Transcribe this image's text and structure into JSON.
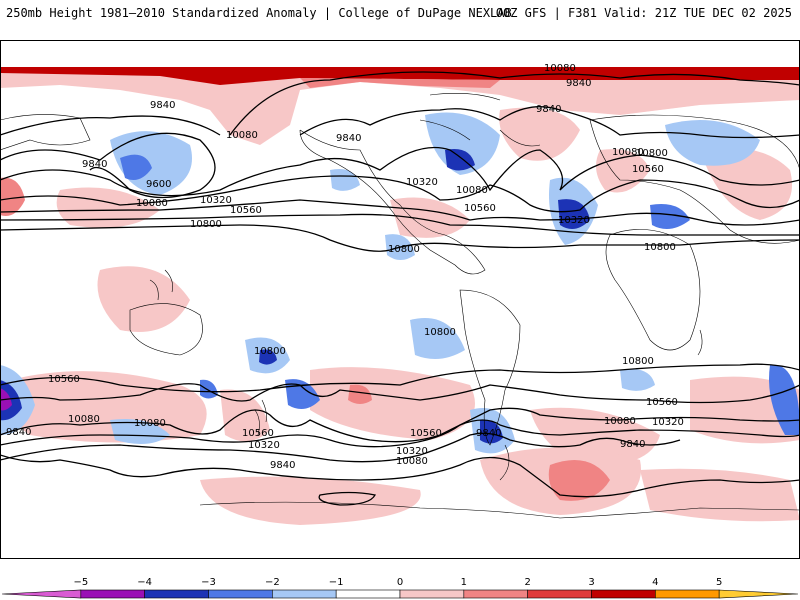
{
  "header": {
    "title_left": "250mb Height 1981–2010 Standardized Anomaly | College of DuPage NEXLAB",
    "title_right": "00Z GFS | F381 Valid: 21Z TUE DEC 02 2025"
  },
  "contour_labels": {
    "c1": "10080",
    "c2": "9840",
    "c3": "9840",
    "c4": "10080",
    "c5": "9840",
    "c6": "9840",
    "c7": "9840",
    "c8": "9600",
    "c9": "10080",
    "c10": "10320",
    "c11": "10560",
    "c12": "10800",
    "c13": "10320",
    "c14": "10080",
    "c15": "10560",
    "c16": "10800",
    "c17": "10080",
    "c18": "10560",
    "c19": "10320",
    "c20": "10800",
    "c21": "10800",
    "c22": "10800",
    "c23": "10800",
    "c24": "10800",
    "c25": "10560",
    "c26": "10080",
    "c27": "9840",
    "c28": "10560",
    "c29": "10080",
    "c30": "10320",
    "c31": "10560",
    "c32": "10320",
    "c33": "10080",
    "c34": "9840",
    "c35": "10560",
    "c36": "10320",
    "c37": "10080",
    "c38": "9840",
    "c39": "9840"
  },
  "colorbar": {
    "ticks": [
      "−5",
      "−4",
      "−3",
      "−2",
      "−1",
      "0",
      "1",
      "2",
      "3",
      "4",
      "5"
    ],
    "colors": [
      "#d95bd3",
      "#9a10b5",
      "#1c33b5",
      "#4e78e6",
      "#a6c8f5",
      "#ffffff",
      "#f7c7c7",
      "#f08484",
      "#e03a3a",
      "#c00000",
      "#ff9900",
      "#ffcc33"
    ]
  }
}
